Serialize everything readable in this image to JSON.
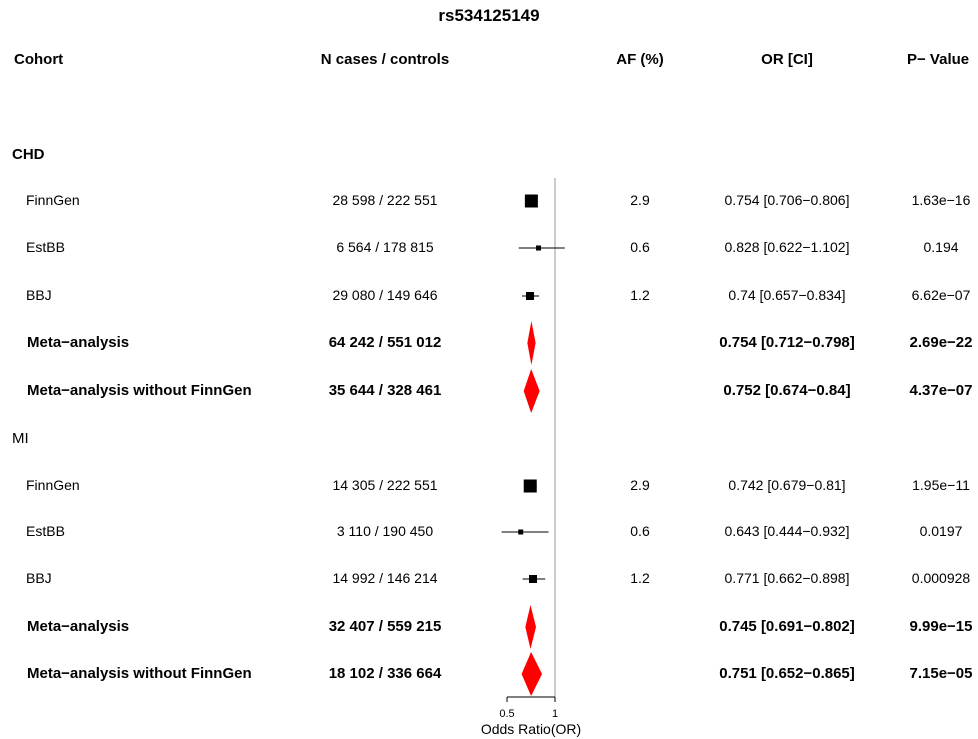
{
  "chart_data": {
    "type": "forest",
    "title": "rs534125149",
    "columns": {
      "cohort": "Cohort",
      "n": "N cases / controls",
      "af": "AF (%)",
      "or": "OR [CI]",
      "p": "P− Value"
    },
    "xlabel": "Odds Ratio(OR)",
    "x_ticks": [
      "0.5",
      "1"
    ],
    "x_tick_values": [
      0.5,
      1
    ],
    "reference_line": 1,
    "groups": [
      {
        "name": "CHD",
        "rows": [
          {
            "cohort": "FinnGen",
            "n": "28 598 / 222 551",
            "af": "2.9",
            "or_text": "0.754 [0.706−0.806]",
            "p": "1.63e−16",
            "or": 0.754,
            "lo": 0.706,
            "hi": 0.806,
            "meta": false
          },
          {
            "cohort": "EstBB",
            "n": "6 564 / 178 815",
            "af": "0.6",
            "or_text": "0.828 [0.622−1.102]",
            "p": "0.194",
            "or": 0.828,
            "lo": 0.622,
            "hi": 1.102,
            "meta": false
          },
          {
            "cohort": "BBJ",
            "n": "29 080 / 149 646",
            "af": "1.2",
            "or_text": "0.74 [0.657−0.834]",
            "p": "6.62e−07",
            "or": 0.74,
            "lo": 0.657,
            "hi": 0.834,
            "meta": false
          },
          {
            "cohort": "Meta−analysis",
            "n": "64 242 / 551 012",
            "af": "",
            "or_text": "0.754 [0.712−0.798]",
            "p": "2.69e−22",
            "or": 0.754,
            "lo": 0.712,
            "hi": 0.798,
            "meta": true
          },
          {
            "cohort": "Meta−analysis without FinnGen",
            "n": "35 644 / 328 461",
            "af": "",
            "or_text": "0.752 [0.674−0.84]",
            "p": "4.37e−07",
            "or": 0.752,
            "lo": 0.674,
            "hi": 0.84,
            "meta": true
          }
        ]
      },
      {
        "name": "MI",
        "rows": [
          {
            "cohort": "FinnGen",
            "n": "14 305 / 222 551",
            "af": "2.9",
            "or_text": "0.742 [0.679−0.81]",
            "p": "1.95e−11",
            "or": 0.742,
            "lo": 0.679,
            "hi": 0.81,
            "meta": false
          },
          {
            "cohort": "EstBB",
            "n": "3 110 / 190 450",
            "af": "0.6",
            "or_text": "0.643 [0.444−0.932]",
            "p": "0.0197",
            "or": 0.643,
            "lo": 0.444,
            "hi": 0.932,
            "meta": false
          },
          {
            "cohort": "BBJ",
            "n": "14 992 / 146 214",
            "af": "1.2",
            "or_text": "0.771 [0.662−0.898]",
            "p": "0.000928",
            "or": 0.771,
            "lo": 0.662,
            "hi": 0.898,
            "meta": false
          },
          {
            "cohort": "Meta−analysis",
            "n": "32 407 / 559 215",
            "af": "",
            "or_text": "0.745 [0.691−0.802]",
            "p": "9.99e−15",
            "or": 0.745,
            "lo": 0.691,
            "hi": 0.802,
            "meta": true
          },
          {
            "cohort": "Meta−analysis without FinnGen",
            "n": "18 102 / 336 664",
            "af": "",
            "or_text": "0.751 [0.652−0.865]",
            "p": "7.15e−05",
            "or": 0.751,
            "lo": 0.652,
            "hi": 0.865,
            "meta": true
          }
        ]
      }
    ],
    "colors": {
      "point": "#000000",
      "meta_diamond": "#ff0000",
      "line": "#000000",
      "reference": "#999999"
    }
  }
}
